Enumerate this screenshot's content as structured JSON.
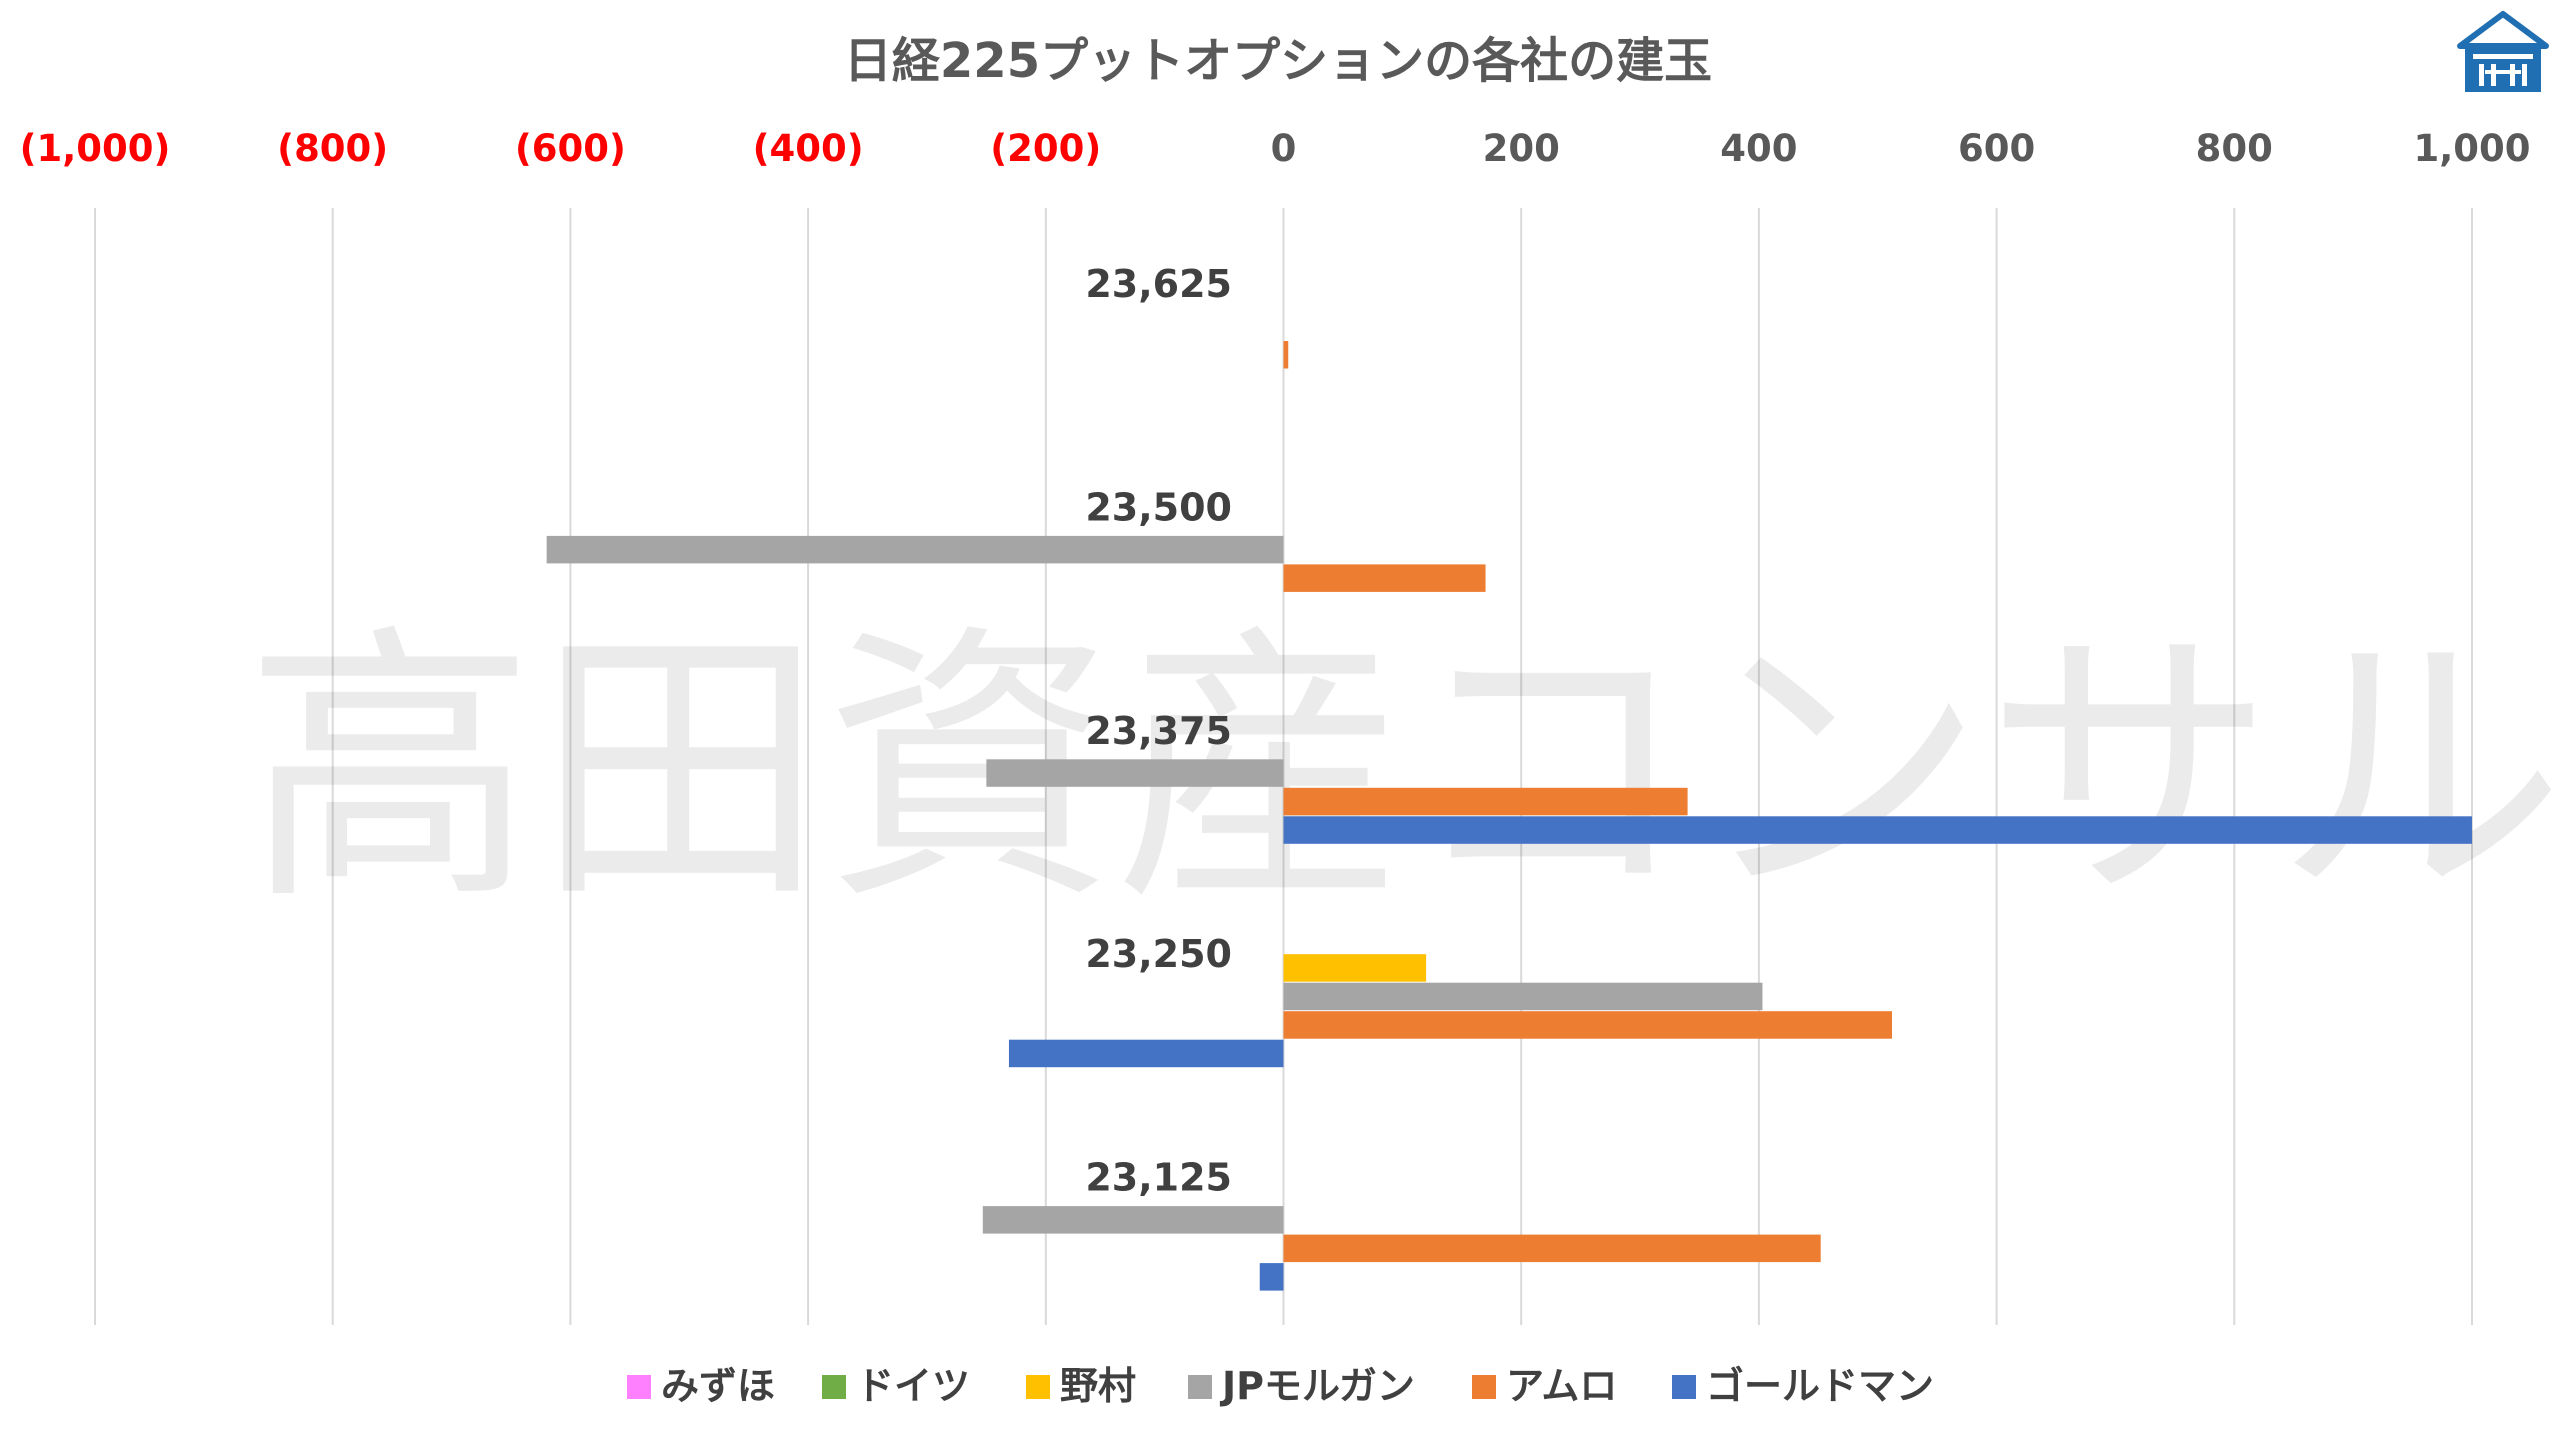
{
  "chart_data": {
    "type": "bar",
    "orientation": "horizontal",
    "title": "日経225プットオプションの各社の建玉",
    "xlim": [
      -1000,
      1000
    ],
    "x_ticks": [
      -1000,
      -800,
      -600,
      -400,
      -200,
      0,
      200,
      400,
      600,
      800,
      1000
    ],
    "x_tick_labels": [
      "(1,000)",
      "(800)",
      "(600)",
      "(400)",
      "(200)",
      "0",
      "200",
      "400",
      "600",
      "800",
      "1,000"
    ],
    "x_axis_position": "top",
    "negative_tick_color": "#ff0000",
    "positive_tick_color": "#595959",
    "grid": "vertical",
    "legend_position": "bottom",
    "categories": [
      "23,625",
      "23,500",
      "23,375",
      "23,250",
      "23,125"
    ],
    "series": [
      {
        "name": "みずほ",
        "color": "#ff80ff",
        "values": [
          0,
          0,
          0,
          0,
          0
        ]
      },
      {
        "name": "ドイツ",
        "color": "#70ad47",
        "values": [
          0,
          0,
          0,
          0,
          0
        ]
      },
      {
        "name": "野村",
        "color": "#ffc000",
        "values": [
          0,
          0,
          0,
          120,
          0
        ]
      },
      {
        "name": "JPモルガン",
        "color": "#a5a5a5",
        "values": [
          0,
          -620,
          -250,
          403,
          -253
        ]
      },
      {
        "name": "アムロ",
        "color": "#ed7d31",
        "values": [
          4,
          170,
          340,
          512,
          452
        ]
      },
      {
        "name": "ゴールドマン",
        "color": "#4472c4",
        "values": [
          0,
          0,
          1000,
          -231,
          -20
        ]
      }
    ]
  },
  "watermark": {
    "text": "高田資産コンサル"
  },
  "logo": {
    "icon": "pavilion-logo-icon",
    "color": "#1f6fb2"
  }
}
